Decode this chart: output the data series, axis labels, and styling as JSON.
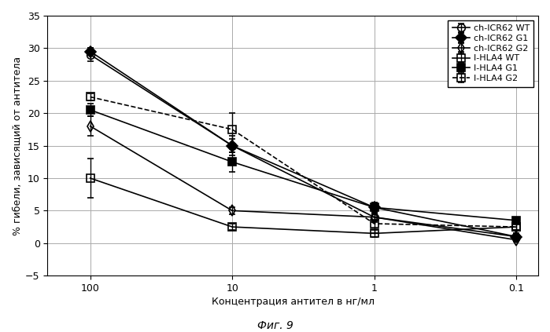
{
  "xlabel": "Концентрация антител в нг/мл",
  "ylabel": "% гибели, зависящий от антитела",
  "caption": "Фиг. 9",
  "x_positions": [
    100,
    10,
    1,
    0.1
  ],
  "series": [
    {
      "label": "ch-ICR62 WT",
      "values": [
        29.0,
        15.0,
        4.0,
        1.0
      ],
      "errors": [
        1.0,
        1.5,
        0.8,
        0.5
      ],
      "marker": "o",
      "fillstyle": "none",
      "color": "#000000",
      "linestyle": "-",
      "markersize": 7
    },
    {
      "label": "ch-ICR62 G1",
      "values": [
        29.5,
        15.0,
        5.5,
        1.0
      ],
      "errors": [
        0.5,
        1.0,
        0.8,
        0.5
      ],
      "marker": "D",
      "fillstyle": "full",
      "color": "#000000",
      "linestyle": "-",
      "markersize": 7
    },
    {
      "label": "ch-ICR62 G2",
      "values": [
        18.0,
        5.0,
        4.0,
        0.5
      ],
      "errors": [
        1.5,
        0.5,
        0.5,
        0.3
      ],
      "marker": "d",
      "fillstyle": "none",
      "color": "#000000",
      "linestyle": "-",
      "markersize": 7
    },
    {
      "label": "I-HLA4 WT",
      "values": [
        10.0,
        2.5,
        1.5,
        2.5
      ],
      "errors": [
        3.0,
        0.5,
        0.5,
        0.5
      ],
      "marker": "s",
      "fillstyle": "none",
      "color": "#000000",
      "linestyle": "-",
      "markersize": 7
    },
    {
      "label": "I-HLA4 G1",
      "values": [
        20.5,
        12.5,
        5.5,
        3.5
      ],
      "errors": [
        1.0,
        1.5,
        0.8,
        0.5
      ],
      "marker": "s",
      "fillstyle": "full",
      "color": "#000000",
      "linestyle": "-",
      "markersize": 7
    },
    {
      "label": "I-HLA4 G2",
      "values": [
        22.5,
        17.5,
        3.0,
        2.5
      ],
      "errors": [
        0.5,
        2.5,
        1.5,
        0.5
      ],
      "marker": "s",
      "fillstyle": "none",
      "color": "#000000",
      "linestyle": "--",
      "markersize": 7
    }
  ],
  "ylim": [
    -5,
    35
  ],
  "yticks": [
    -5,
    0,
    5,
    10,
    15,
    20,
    25,
    30,
    35
  ],
  "background_color": "#ffffff",
  "grid_color": "#aaaaaa"
}
